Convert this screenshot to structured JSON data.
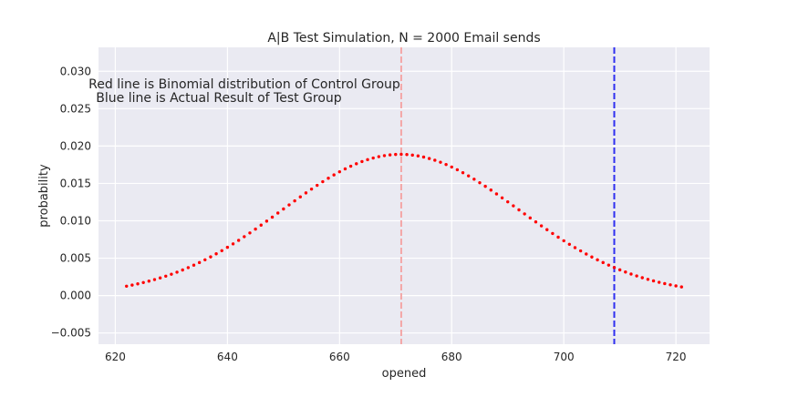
{
  "chart_data": {
    "type": "scatter",
    "title": "A|B Test Simulation, N = 2000 Email sends",
    "xlabel": "opened",
    "ylabel": "probability",
    "xlim": [
      617.0,
      726.0
    ],
    "ylim": [
      -0.0065,
      0.0332
    ],
    "xticks": [
      620,
      640,
      660,
      680,
      700,
      720
    ],
    "yticks": [
      -0.005,
      0.0,
      0.005,
      0.01,
      0.015,
      0.02,
      0.025,
      0.03
    ],
    "xtick_labels": [
      "620",
      "640",
      "660",
      "680",
      "700",
      "720"
    ],
    "ytick_labels": [
      "−0.005",
      "0.000",
      "0.005",
      "0.010",
      "0.015",
      "0.020",
      "0.025",
      "0.030"
    ],
    "grid": true,
    "annotation_lines": [
      "Red line is Binomial distribution of Control Group",
      "Blue line is Actual Result of Test Group"
    ],
    "distribution": {
      "n": 2000,
      "mean": 671.0,
      "x_min": 622,
      "x_max": 721,
      "color": "#ff0000"
    },
    "vlines": [
      {
        "x": 671,
        "color": "#f4a6a6"
      },
      {
        "x": 709,
        "color": "#2f2ff0"
      }
    ],
    "colors": {
      "background": "#eaeaf2",
      "grid": "#ffffff",
      "points": "#ff0000"
    }
  }
}
